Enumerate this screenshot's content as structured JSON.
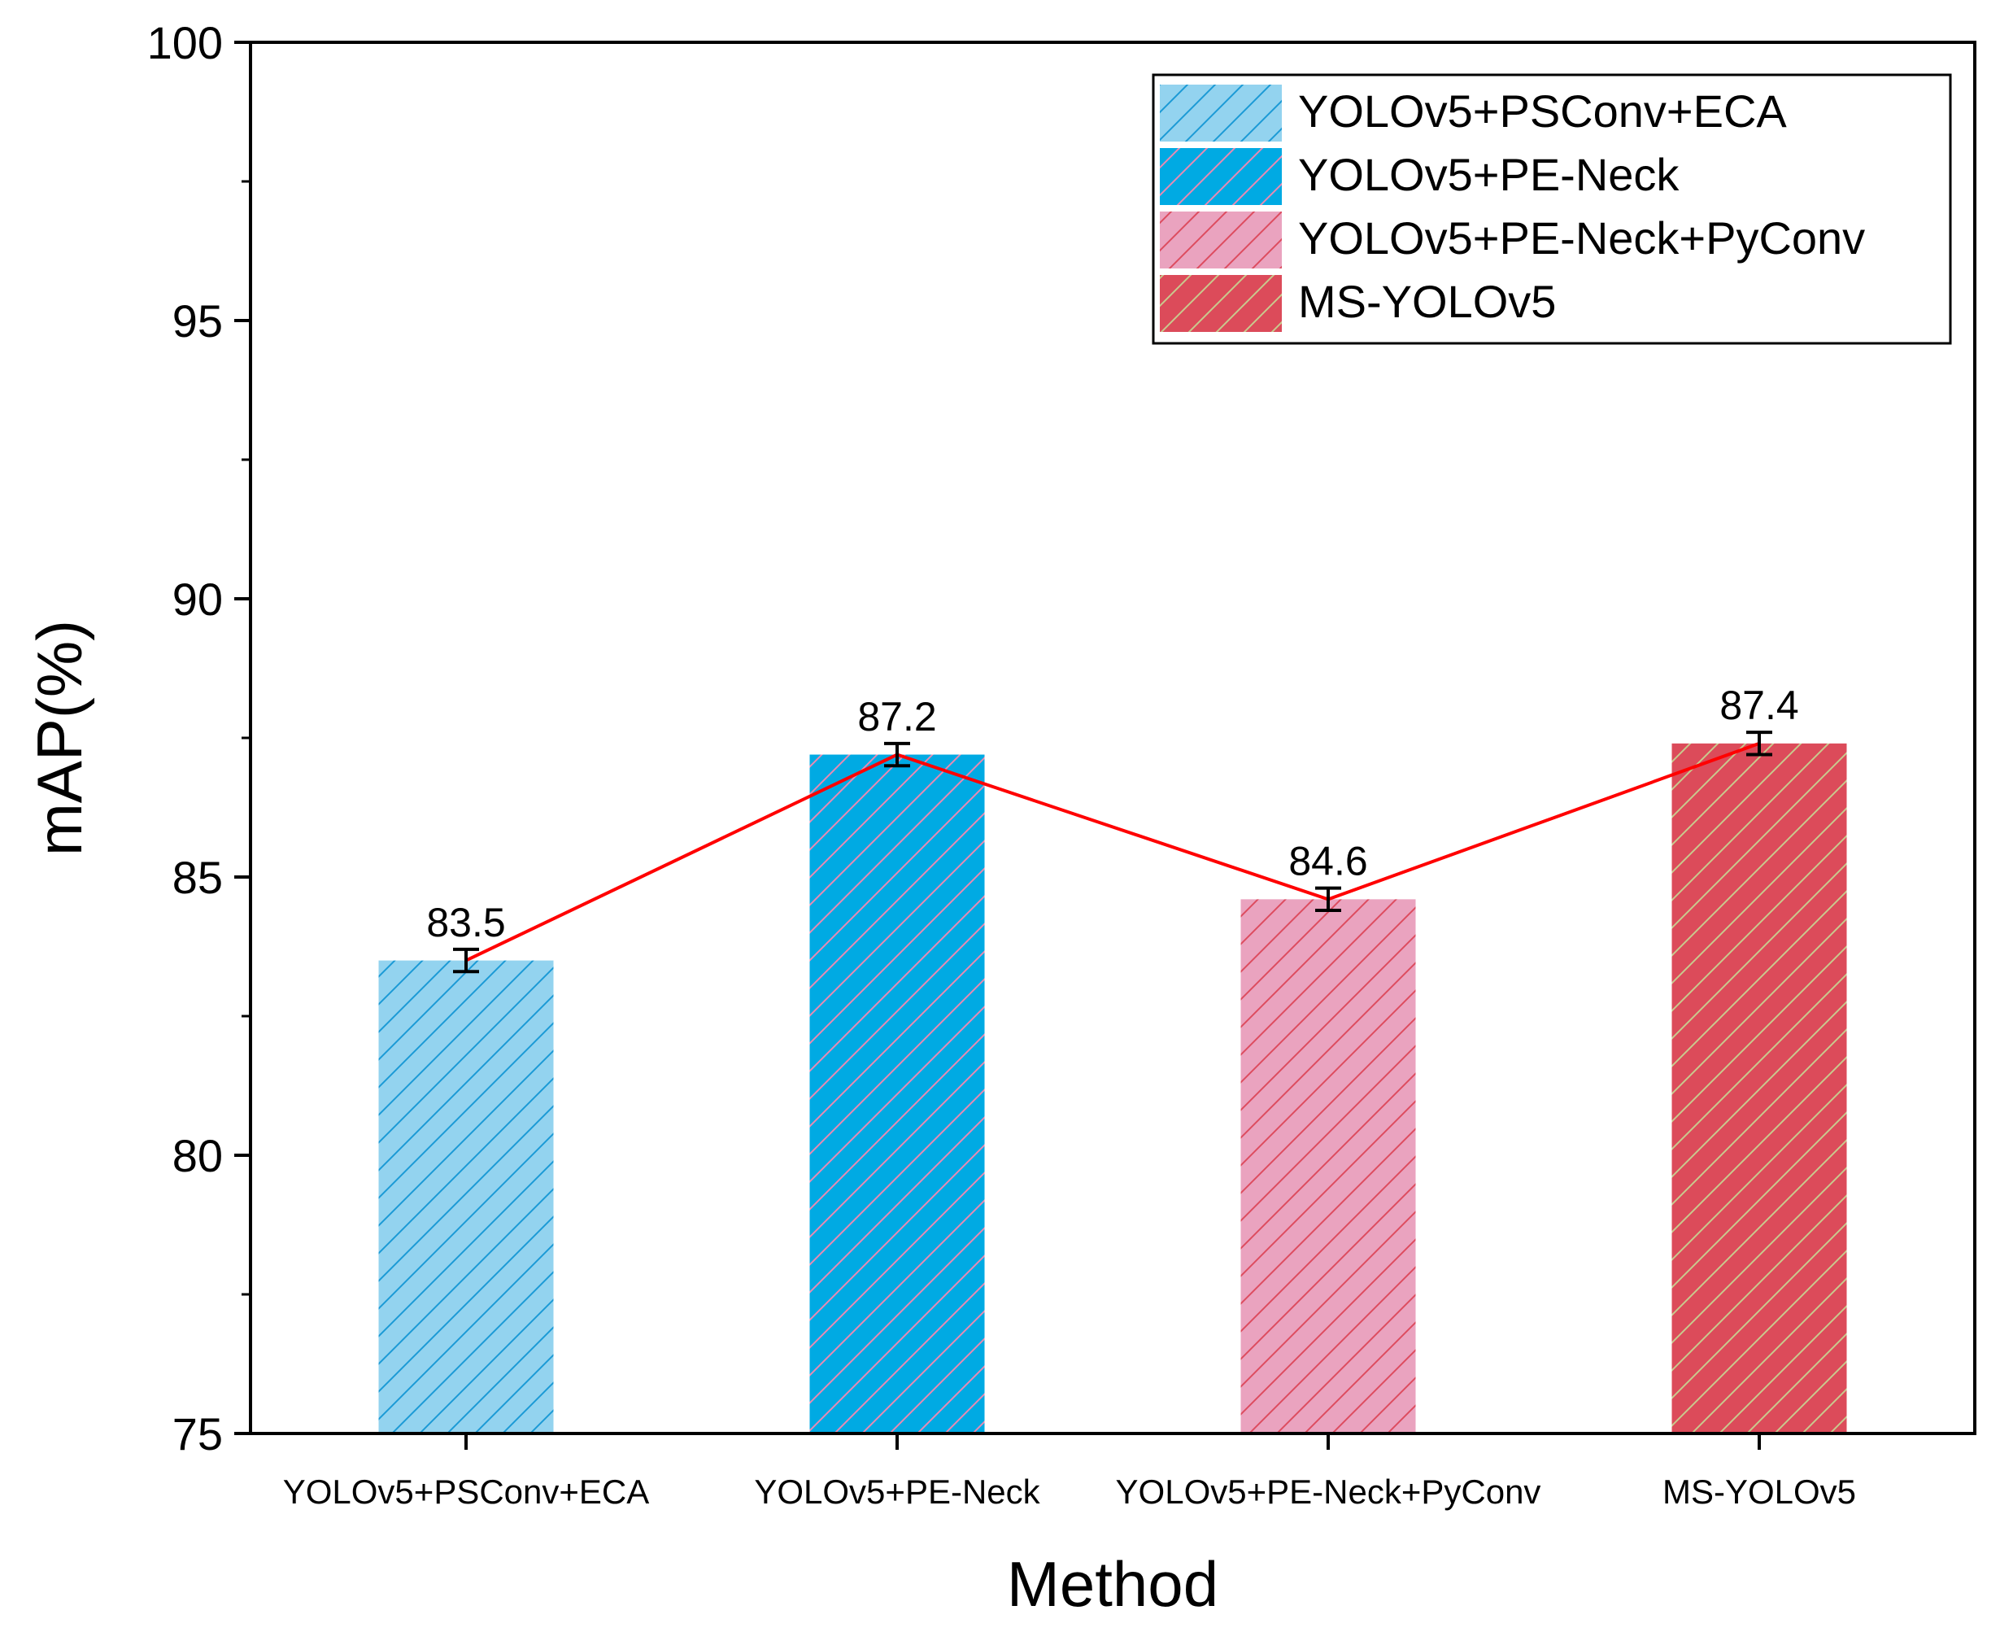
{
  "chart_data": {
    "type": "bar",
    "xlabel": "Method",
    "ylabel": "mAP(%)",
    "ylim": [
      75,
      100
    ],
    "yticks": [
      75,
      80,
      85,
      90,
      95,
      100
    ],
    "categories": [
      "YOLOv5+PSConv+ECA",
      "YOLOv5+PE-Neck",
      "YOLOv5+PE-Neck+PyConv",
      "MS-YOLOv5"
    ],
    "values": [
      83.5,
      87.2,
      84.6,
      87.4
    ],
    "value_labels": [
      "83.5",
      "87.2",
      "84.6",
      "87.4"
    ],
    "errors": [
      0.2,
      0.2,
      0.2,
      0.2
    ],
    "bar_colors": [
      "#93d3ef",
      "#00aae3",
      "#eaa3bf",
      "#dc4b5a"
    ],
    "hatch_colors": [
      "#1b9ad6",
      "#e98ab3",
      "#dd4c5f",
      "#c9c98d"
    ],
    "line": {
      "color": "#ff0000",
      "type": "line",
      "values": [
        83.5,
        87.2,
        84.6,
        87.4
      ]
    },
    "legend": {
      "position": "top-right",
      "entries": [
        "YOLOv5+PSConv+ECA",
        "YOLOv5+PE-Neck",
        "YOLOv5+PE-Neck+PyConv",
        "MS-YOLOv5"
      ]
    },
    "grid": false
  }
}
